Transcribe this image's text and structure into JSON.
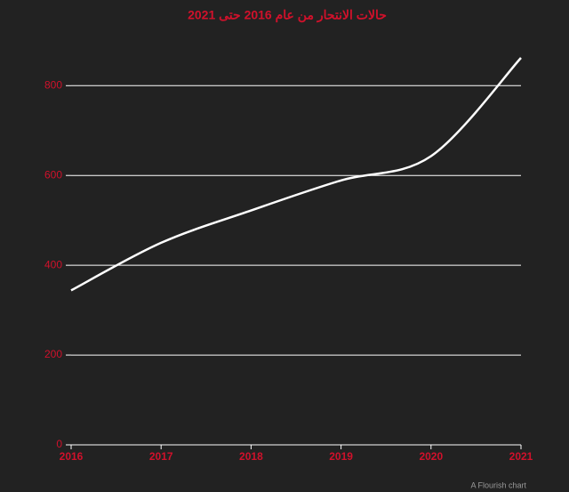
{
  "chart_data": {
    "type": "line",
    "title": "حالات الانتحار من عام 2016 حتى 2021",
    "x": [
      2016,
      2017,
      2018,
      2019,
      2020,
      2021
    ],
    "series": [
      {
        "color": "#ffffff",
        "values": [
          344,
          450,
          522,
          589,
          643,
          862
        ]
      }
    ],
    "xlim": [
      2016,
      2021
    ],
    "xticks": [
      2016,
      2017,
      2018,
      2019,
      2020,
      2021
    ],
    "ylim": [
      0,
      862
    ],
    "yticks": [
      0,
      200,
      400,
      600,
      800
    ],
    "grid": true,
    "credit": "A Flourish chart"
  }
}
